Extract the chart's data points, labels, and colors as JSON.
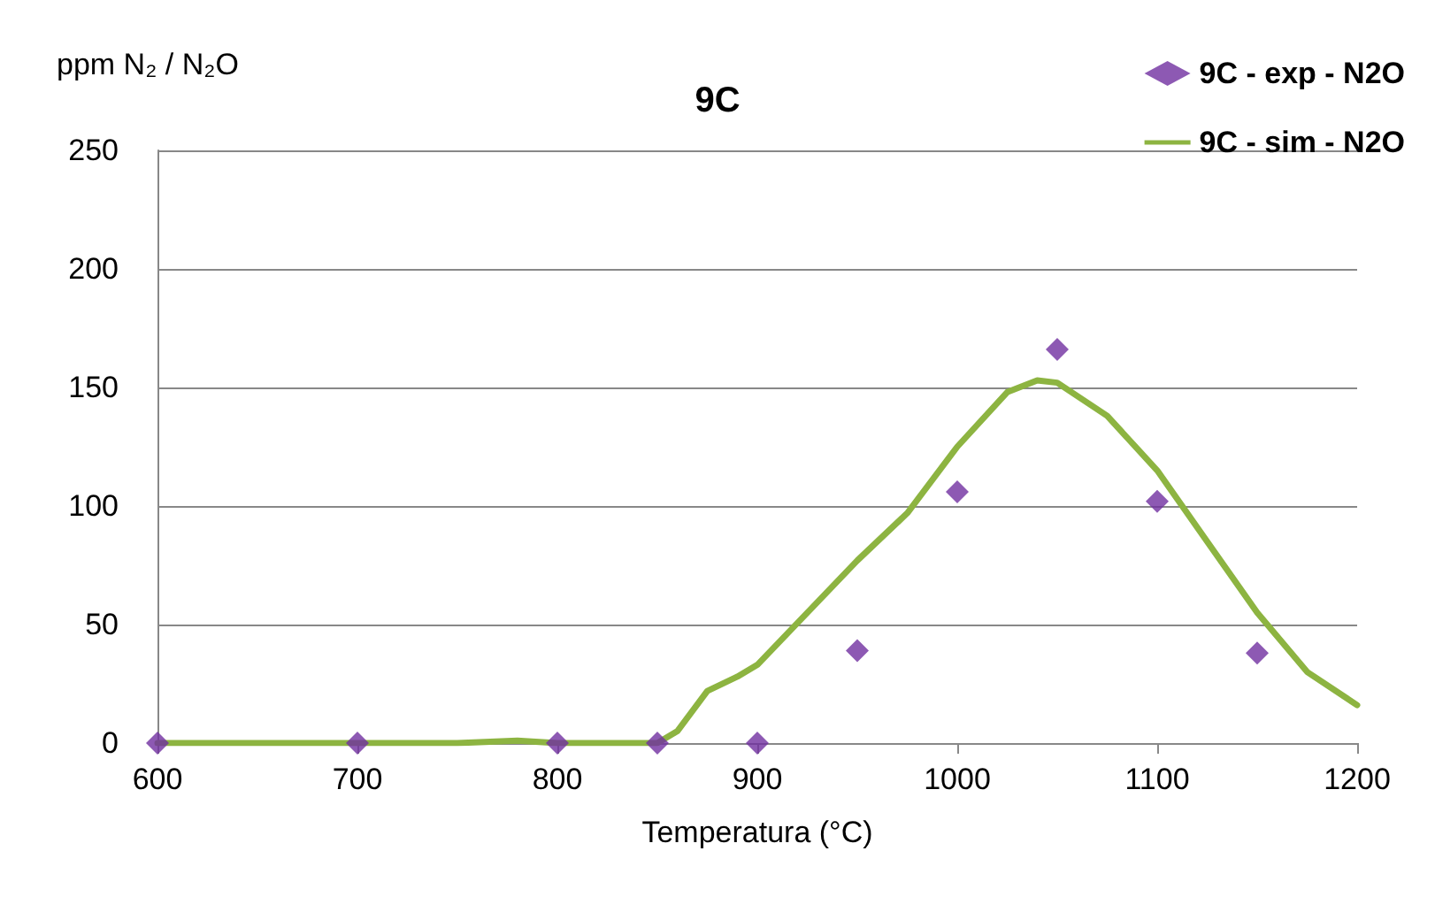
{
  "chart_data": {
    "type": "scatter",
    "title": "9C",
    "xlabel": "Temperatura (°C)",
    "ylabel": "ppm N₂ / N₂O",
    "xlim": [
      600,
      1200
    ],
    "xticks": [
      600,
      700,
      800,
      900,
      1000,
      1100,
      1200
    ],
    "ylim": [
      0,
      250
    ],
    "yticks": [
      0,
      50,
      100,
      150,
      200,
      250
    ],
    "grid": "y",
    "legend": "top right",
    "series": [
      {
        "name": "9C - exp - N2O",
        "color": "#7030a0",
        "marker": "diamond",
        "x": [
          600,
          700,
          800,
          850,
          900,
          950,
          1000,
          1050,
          1100,
          1150
        ],
        "values": [
          0,
          0,
          0,
          0,
          0,
          39,
          106,
          166,
          102,
          38
        ]
      },
      {
        "name": "9C - sim - N2O",
        "type": "line",
        "color": "#8db441",
        "marker": "none",
        "x": [
          600,
          700,
          750,
          780,
          800,
          830,
          850,
          860,
          875,
          890,
          900,
          925,
          950,
          975,
          1000,
          1025,
          1040,
          1050,
          1075,
          1100,
          1125,
          1150,
          1175,
          1200
        ],
        "values": [
          0,
          0,
          0,
          1,
          0,
          0,
          0,
          5,
          22,
          28,
          33,
          55,
          77,
          97,
          125,
          148,
          153,
          152,
          138,
          115,
          85,
          55,
          30,
          16
        ]
      }
    ]
  }
}
